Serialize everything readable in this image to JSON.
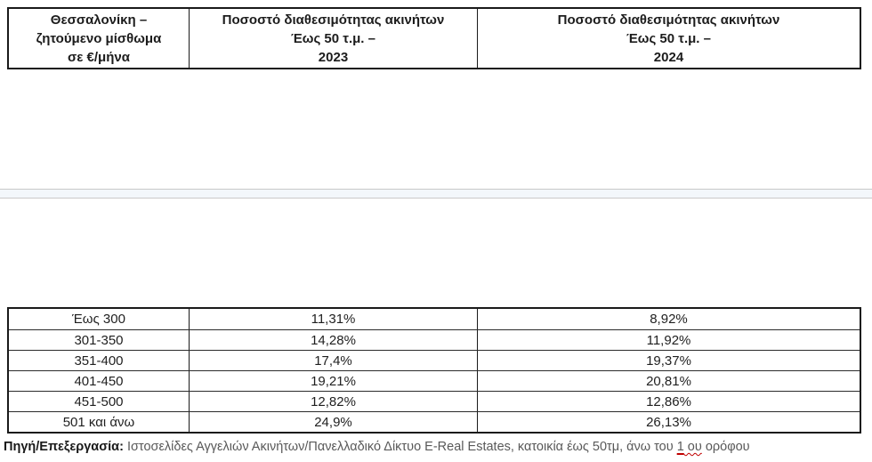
{
  "document": {
    "header_table": {
      "col_rent": "Θεσσαλονίκη –\nζητούμενο μίσθωμα\nσε €/μήνα",
      "col_2023": "Ποσοστό διαθεσιμότητας ακινήτων\nΈως 50 τ.μ. –\n2023",
      "col_2024": "Ποσοστό διαθεσιμότητας ακινήτων\nΈως 50 τ.μ. –\n2024"
    },
    "data_table": {
      "rows": [
        [
          "Έως 300",
          "11,31%",
          "8,92%"
        ],
        [
          "301-350",
          "14,28%",
          "11,92%"
        ],
        [
          "351-400",
          "17,4%",
          "19,37%"
        ],
        [
          "401-450",
          "19,21%",
          "20,81%"
        ],
        [
          "451-500",
          "12,82%",
          "12,86%"
        ],
        [
          "501 και άνω",
          "24,9%",
          "26,13%"
        ]
      ]
    },
    "source_note": {
      "label": "Πηγή/Επεξεργασία:",
      "text_before": " Ιστοσελίδες Αγγελιών Ακινήτων/Πανελλαδικό Δίκτυο E-Real Estates, κατοικία έως 50τμ, άνω του ",
      "flagged_number": "1",
      "flagged_word": " ου",
      "text_after": " ορόφου"
    },
    "colors": {
      "spellcheck_red": "#c00000",
      "page_break_band_bg": "#f3f7fb",
      "page_break_band_border": "#c9c9c9",
      "table_border": "#1a1a1a",
      "body_text": "#1f1f1f",
      "note_text": "#595959"
    }
  },
  "chart_data": {
    "type": "table",
    "title": "Θεσσαλονίκη – ζητούμενο μίσθωμα σε €/μήνα: Ποσοστό διαθεσιμότητας ακινήτων Έως 50 τ.μ. (2023 vs 2024)",
    "columns": [
      "Θεσσαλονίκη – ζητούμενο μίσθωμα σε €/μήνα",
      "Ποσοστό διαθεσιμότητας ακινήτων Έως 50 τ.μ. – 2023",
      "Ποσοστό διαθεσιμότητας ακινήτων Έως 50 τ.μ. – 2024"
    ],
    "categories": [
      "Έως 300",
      "301-350",
      "351-400",
      "401-450",
      "451-500",
      "501 και άνω"
    ],
    "series": [
      {
        "name": "2023",
        "values": [
          11.31,
          14.28,
          17.4,
          19.21,
          12.82,
          24.9
        ]
      },
      {
        "name": "2024",
        "values": [
          8.92,
          11.92,
          19.37,
          20.81,
          12.86,
          26.13
        ]
      }
    ],
    "unit": "%"
  }
}
